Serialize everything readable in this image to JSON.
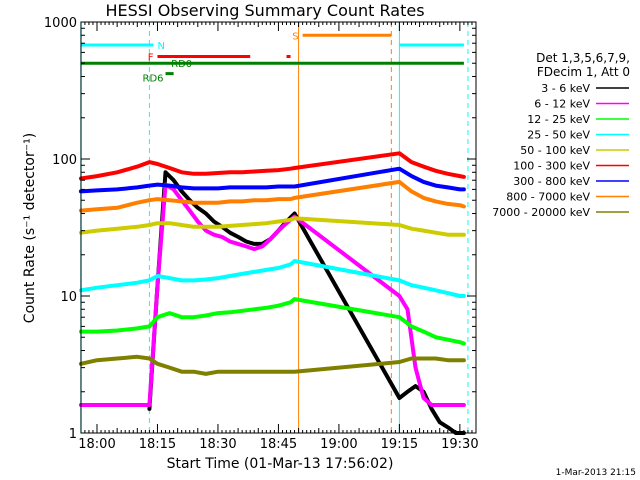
{
  "chart_data": {
    "type": "line",
    "title": "HESSI Observing Summary Count Rates",
    "xlabel": "Start Time (01-Mar-13 17:56:02)",
    "ylabel": "Count Rate (s⁻¹ detector⁻¹)",
    "yscale": "log",
    "ylim": [
      1,
      1000
    ],
    "xlim": [
      "17:56:02",
      "19:34:00"
    ],
    "x_ticks": [
      "18:00",
      "18:15",
      "18:30",
      "18:45",
      "19:00",
      "19:15",
      "19:30"
    ],
    "y_ticks": [
      "1",
      "10",
      "100",
      "1000"
    ],
    "grid": false,
    "legend_position": "right",
    "legend_header": [
      "Det 1,3,5,6,7,9,",
      "FDecim 1, Att 0"
    ],
    "footer": "1-Mar-2013 21:15",
    "series": [
      {
        "name": "3 - 6 keV",
        "color": "#000000",
        "x": [
          "18:13",
          "18:15",
          "18:17",
          "18:19",
          "18:21",
          "18:23",
          "18:25",
          "18:27",
          "18:29",
          "18:31",
          "18:33",
          "18:35",
          "18:37",
          "18:39",
          "18:41",
          "18:43",
          "18:45",
          "18:47",
          "18:49",
          "19:15",
          "19:17",
          "19:19",
          "19:21",
          "19:23",
          "19:25",
          "19:27",
          "19:29",
          "19:31"
        ],
        "y": [
          1.5,
          12,
          80,
          70,
          58,
          50,
          44,
          40,
          35,
          32,
          29,
          27,
          25,
          24,
          24,
          26,
          30,
          35,
          40,
          1.8,
          2.0,
          2.2,
          2.0,
          1.5,
          1.2,
          1.1,
          1.0,
          1.0
        ]
      },
      {
        "name": "6 - 12 keV",
        "color": "#ff00ff",
        "x": [
          "17:56",
          "18:00",
          "18:05",
          "18:10",
          "18:13",
          "18:15",
          "18:17",
          "18:19",
          "18:21",
          "18:23",
          "18:25",
          "18:27",
          "18:29",
          "18:31",
          "18:33",
          "18:35",
          "18:37",
          "18:39",
          "18:41",
          "18:43",
          "18:45",
          "18:47",
          "18:49",
          "19:15",
          "19:17",
          "19:19",
          "19:21",
          "19:23",
          "19:25",
          "19:27",
          "19:29",
          "19:31"
        ],
        "y": [
          1.6,
          1.6,
          1.6,
          1.6,
          1.6,
          12,
          65,
          60,
          50,
          42,
          35,
          30,
          28,
          27,
          25,
          24,
          23,
          22,
          23,
          26,
          30,
          34,
          38,
          10,
          8,
          3,
          1.8,
          1.6,
          1.6,
          1.6,
          1.6,
          1.6
        ]
      },
      {
        "name": "12 - 25 keV",
        "color": "#00ff00",
        "x": [
          "17:56",
          "18:00",
          "18:05",
          "18:10",
          "18:13",
          "18:15",
          "18:18",
          "18:21",
          "18:24",
          "18:27",
          "18:30",
          "18:33",
          "18:36",
          "18:39",
          "18:42",
          "18:45",
          "18:48",
          "18:49",
          "19:15",
          "19:18",
          "19:21",
          "19:24",
          "19:27",
          "19:30",
          "19:31"
        ],
        "y": [
          5.5,
          5.5,
          5.6,
          5.8,
          6,
          7,
          7.5,
          7,
          7,
          7.2,
          7.5,
          7.6,
          7.8,
          8,
          8.2,
          8.5,
          9,
          9.5,
          7,
          6,
          5.5,
          5,
          4.8,
          4.6,
          4.5
        ]
      },
      {
        "name": "25 - 50 keV",
        "color": "#00ffff",
        "x": [
          "17:56",
          "18:00",
          "18:05",
          "18:10",
          "18:13",
          "18:15",
          "18:18",
          "18:21",
          "18:24",
          "18:27",
          "18:30",
          "18:33",
          "18:36",
          "18:39",
          "18:42",
          "18:45",
          "18:48",
          "18:49",
          "19:15",
          "19:18",
          "19:21",
          "19:24",
          "19:27",
          "19:30",
          "19:31"
        ],
        "y": [
          11,
          11.5,
          12,
          12.5,
          13,
          14,
          13.5,
          13,
          13,
          13.2,
          13.5,
          14,
          14.5,
          15,
          15.5,
          16,
          17,
          18,
          13,
          12,
          11.5,
          11,
          10.5,
          10,
          10
        ]
      },
      {
        "name": "50 - 100 keV",
        "color": "#cccc00",
        "x": [
          "17:56",
          "18:00",
          "18:05",
          "18:10",
          "18:13",
          "18:15",
          "18:18",
          "18:21",
          "18:24",
          "18:27",
          "18:30",
          "18:33",
          "18:36",
          "18:39",
          "18:42",
          "18:45",
          "18:48",
          "18:49",
          "19:15",
          "19:18",
          "19:21",
          "19:24",
          "19:27",
          "19:30",
          "19:31"
        ],
        "y": [
          29,
          30,
          31,
          32,
          33,
          34,
          34,
          33,
          32,
          32,
          32,
          32.5,
          33,
          33.5,
          34,
          35,
          36,
          37,
          33,
          31,
          30,
          29,
          28,
          28,
          28
        ]
      },
      {
        "name": "100 - 300 keV",
        "color": "#ff0000",
        "x": [
          "17:56",
          "18:00",
          "18:05",
          "18:10",
          "18:13",
          "18:15",
          "18:18",
          "18:21",
          "18:24",
          "18:27",
          "18:30",
          "18:33",
          "18:36",
          "18:39",
          "18:42",
          "18:45",
          "18:48",
          "18:49",
          "19:15",
          "19:18",
          "19:21",
          "19:24",
          "19:27",
          "19:30",
          "19:31"
        ],
        "y": [
          72,
          75,
          80,
          88,
          95,
          92,
          86,
          80,
          78,
          78,
          79,
          80,
          80,
          81,
          82,
          83,
          85,
          86,
          110,
          95,
          88,
          82,
          78,
          75,
          74
        ]
      },
      {
        "name": "300 - 800 keV",
        "color": "#0000ff",
        "x": [
          "17:56",
          "18:00",
          "18:05",
          "18:10",
          "18:13",
          "18:15",
          "18:18",
          "18:21",
          "18:24",
          "18:27",
          "18:30",
          "18:33",
          "18:36",
          "18:39",
          "18:42",
          "18:45",
          "18:48",
          "18:49",
          "19:15",
          "19:18",
          "19:21",
          "19:24",
          "19:27",
          "19:30",
          "19:31"
        ],
        "y": [
          58,
          59,
          60,
          62,
          64,
          65,
          64,
          62,
          61,
          61,
          61,
          62,
          62,
          62,
          62,
          63,
          63,
          63,
          85,
          75,
          68,
          64,
          62,
          60,
          60
        ]
      },
      {
        "name": "800 - 7000 keV",
        "color": "#ff8000",
        "x": [
          "17:56",
          "18:00",
          "18:05",
          "18:10",
          "18:13",
          "18:15",
          "18:18",
          "18:21",
          "18:24",
          "18:27",
          "18:30",
          "18:33",
          "18:36",
          "18:39",
          "18:42",
          "18:45",
          "18:48",
          "18:49",
          "19:15",
          "19:18",
          "19:21",
          "19:24",
          "19:27",
          "19:30",
          "19:31"
        ],
        "y": [
          42,
          43,
          44,
          48,
          50,
          51,
          50,
          49,
          48,
          48,
          48,
          49,
          49,
          50,
          50,
          51,
          51,
          52,
          68,
          58,
          52,
          49,
          47,
          46,
          45
        ]
      },
      {
        "name": "7000 - 20000 keV",
        "color": "#808000",
        "x": [
          "17:56",
          "18:00",
          "18:05",
          "18:10",
          "18:13",
          "18:15",
          "18:18",
          "18:21",
          "18:24",
          "18:27",
          "18:30",
          "18:33",
          "18:36",
          "18:39",
          "18:42",
          "18:45",
          "18:48",
          "18:49",
          "19:15",
          "19:18",
          "19:21",
          "19:24",
          "19:27",
          "19:30",
          "19:31"
        ],
        "y": [
          3.2,
          3.4,
          3.5,
          3.6,
          3.5,
          3.2,
          3,
          2.8,
          2.8,
          2.7,
          2.8,
          2.8,
          2.8,
          2.8,
          2.8,
          2.8,
          2.8,
          2.8,
          3.3,
          3.5,
          3.5,
          3.5,
          3.4,
          3.4,
          3.4
        ]
      }
    ],
    "flags": [
      {
        "label": "N",
        "color": "#00ffff",
        "y": 680,
        "segments": [
          [
            "17:56",
            "18:14"
          ],
          [
            "19:15",
            "19:31"
          ]
        ]
      },
      {
        "label": "F",
        "color": "#ff0000",
        "y": 560,
        "segments": [
          [
            "18:15",
            "18:38"
          ],
          [
            "18:47",
            "18:48"
          ]
        ]
      },
      {
        "label": "RD0",
        "color": "#008000",
        "y": 500,
        "segments": [
          [
            "17:56",
            "19:31"
          ]
        ]
      },
      {
        "label": "RD6",
        "color": "#008000",
        "y": 420,
        "segments": [
          [
            "18:17",
            "18:19"
          ]
        ]
      },
      {
        "label": "S",
        "color": "#ff8000",
        "y": 800,
        "segments": [
          [
            "18:51",
            "19:13"
          ]
        ]
      }
    ],
    "vertical_markers": [
      {
        "x": "17:56",
        "color": "#00ffff",
        "style": "solid"
      },
      {
        "x": "18:13",
        "color": "#00ffff",
        "style": "dashed"
      },
      {
        "x": "18:50",
        "color": "#ff8000",
        "style": "solid"
      },
      {
        "x": "19:13",
        "color": "#ff8000",
        "style": "dashed"
      },
      {
        "x": "19:15",
        "color": "#00ffff",
        "style": "solid"
      },
      {
        "x": "19:32",
        "color": "#00ffff",
        "style": "dashed"
      }
    ]
  }
}
